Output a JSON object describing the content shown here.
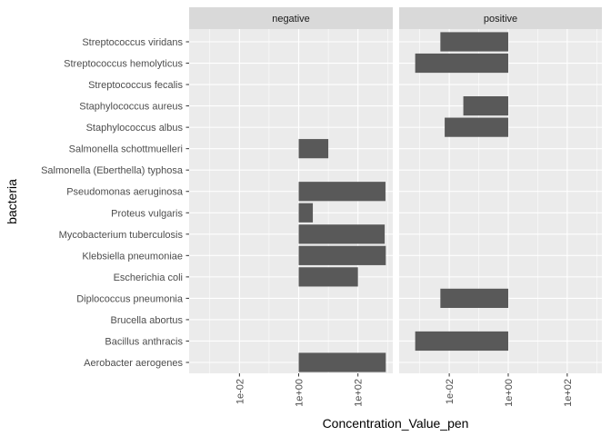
{
  "chart_data": {
    "type": "bar",
    "orientation": "horizontal",
    "xlabel": "Concentration_Value_pen",
    "ylabel": "bacteria",
    "x_scale": "log10",
    "xlim": [
      0.0002,
      1500
    ],
    "x_ticks": [
      {
        "value": 0.01,
        "label": "1e-02"
      },
      {
        "value": 1,
        "label": "1e+00"
      },
      {
        "value": 100,
        "label": "1e+02"
      }
    ],
    "bar_base": 1,
    "categories": [
      "Streptococcus viridans",
      "Streptococcus hemolyticus",
      "Streptococcus fecalis",
      "Staphylococcus aureus",
      "Staphylococcus albus",
      "Salmonella schottmuelleri",
      "Salmonella (Eberthella) typhosa",
      "Pseudomonas aeruginosa",
      "Proteus vulgaris",
      "Mycobacterium tuberculosis",
      "Klebsiella pneumoniae",
      "Escherichia coli",
      "Diplococcus pneumonia",
      "Brucella abortus",
      "Bacillus anthracis",
      "Aerobacter aerogenes"
    ],
    "facets": [
      {
        "label": "negative",
        "values": [
          null,
          null,
          null,
          null,
          null,
          10,
          null,
          850,
          3,
          800,
          870,
          100,
          null,
          null,
          null,
          870
        ]
      },
      {
        "label": "positive",
        "values": [
          0.005,
          0.0007,
          null,
          0.03,
          0.007,
          null,
          null,
          null,
          null,
          null,
          null,
          null,
          0.005,
          null,
          0.0007,
          null
        ]
      }
    ],
    "colors": {
      "bar": "#595959",
      "panel": "#ebebeb",
      "grid_major": "#ffffff",
      "grid_minor": "#f2f2f2",
      "strip": "#d9d9d9",
      "tick": "#333333"
    }
  }
}
